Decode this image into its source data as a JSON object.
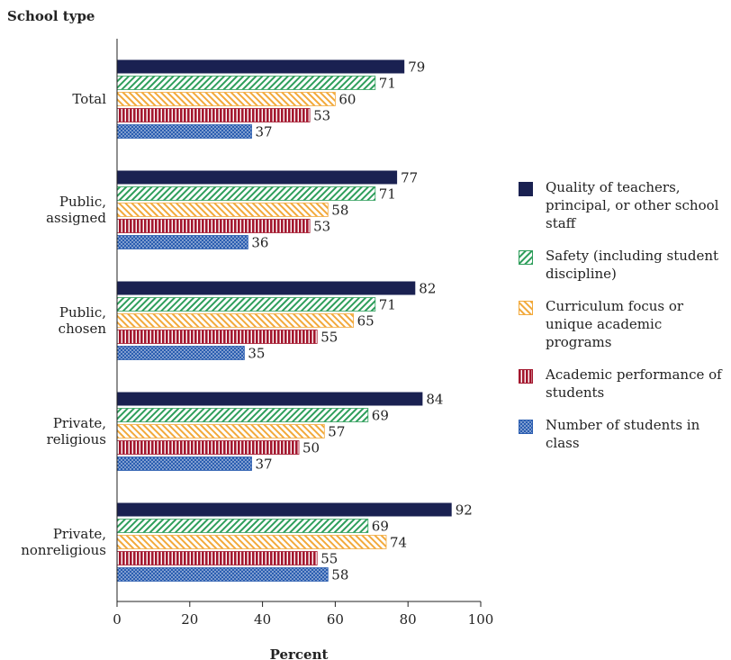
{
  "chart_data": {
    "type": "bar",
    "orientation": "horizontal",
    "title": "",
    "ylabel": "School type",
    "xlabel": "Percent",
    "xlim": [
      0,
      100
    ],
    "xticks": [
      0,
      20,
      40,
      60,
      80,
      100
    ],
    "categories": [
      "Total",
      "Public,\nassigned",
      "Public,\nchosen",
      "Private,\nreligious",
      "Private,\nnonreligious"
    ],
    "series": [
      {
        "name": "Quality of teachers, principal, or other school staff",
        "values": [
          79,
          77,
          82,
          84,
          92
        ],
        "color": "#1a2151",
        "pattern": "solid"
      },
      {
        "name": "Safety (including student discipline)",
        "values": [
          71,
          71,
          71,
          69,
          69
        ],
        "color": "#2e9e5b",
        "pattern": "diagonal-up"
      },
      {
        "name": "Curriculum focus or unique academic programs",
        "values": [
          60,
          58,
          65,
          57,
          74
        ],
        "color": "#f2a93b",
        "pattern": "diagonal-down"
      },
      {
        "name": "Academic performance of students",
        "values": [
          53,
          53,
          55,
          50,
          55
        ],
        "color": "#a3172e",
        "pattern": "vertical"
      },
      {
        "name": "Number of students in class",
        "values": [
          37,
          36,
          35,
          37,
          58
        ],
        "color": "#2a5db0",
        "pattern": "dots"
      }
    ],
    "legend_position": "right",
    "grid": false
  }
}
